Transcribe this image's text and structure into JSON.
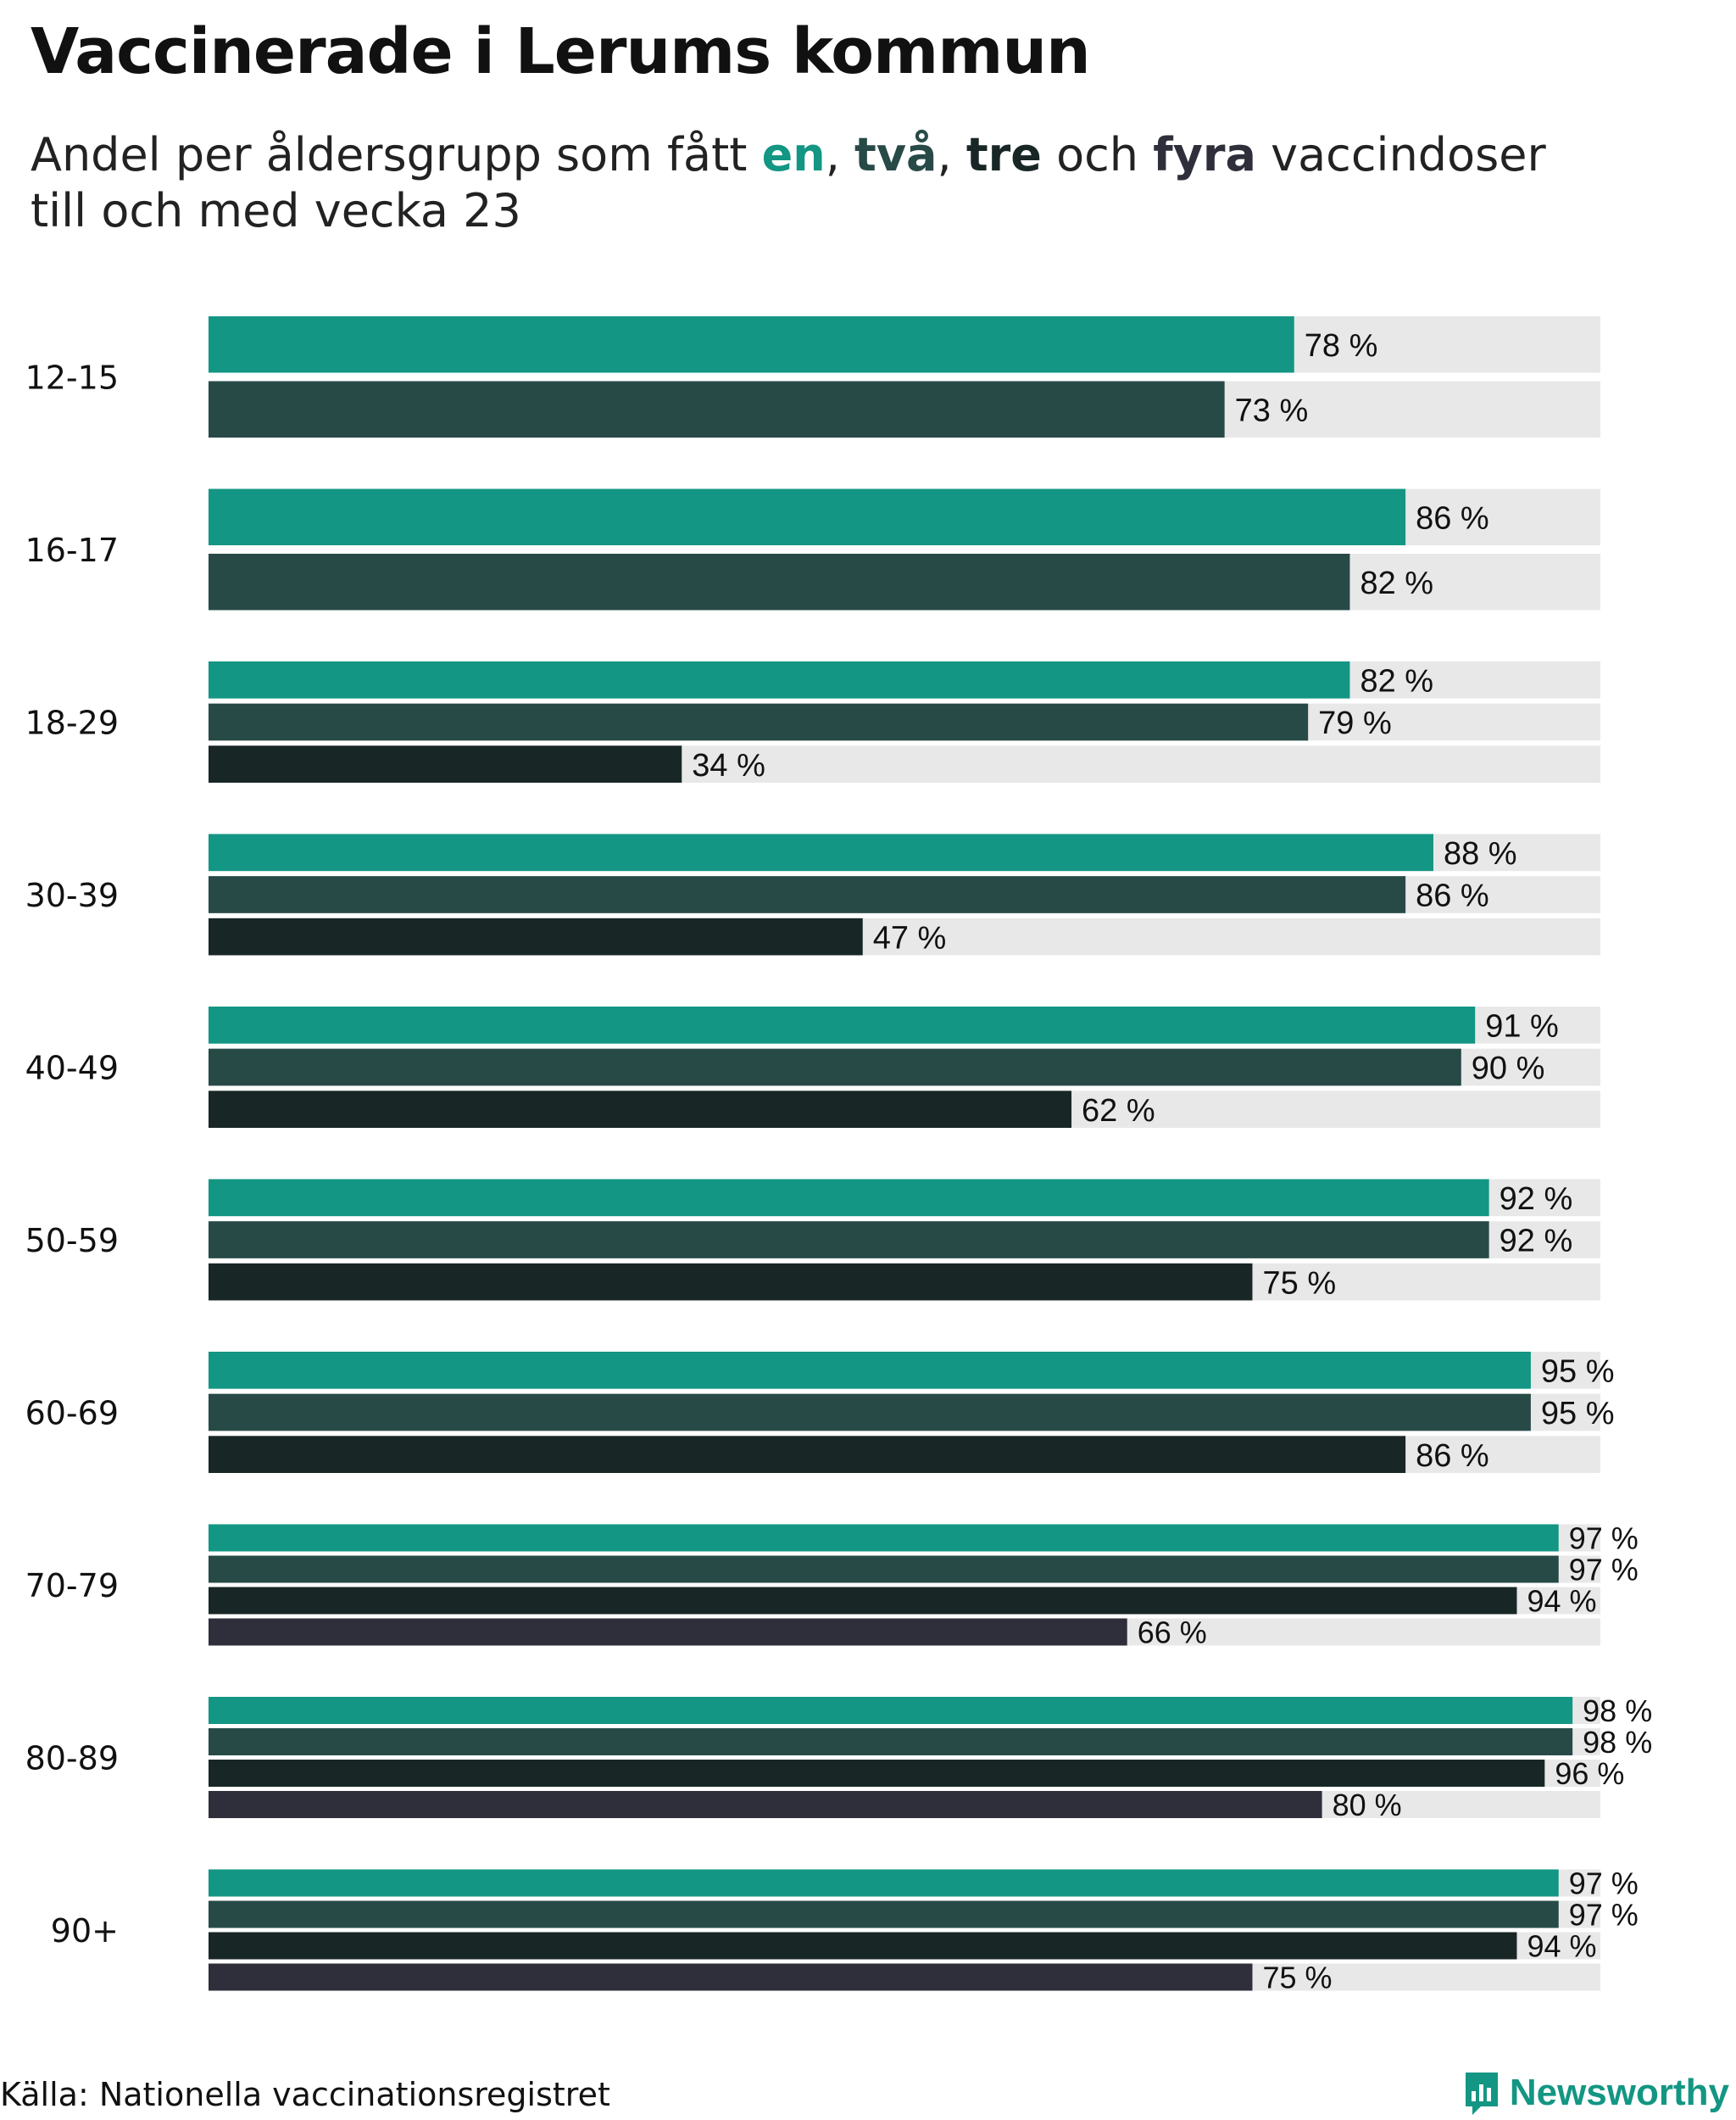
{
  "header": {
    "title": "Vaccinerade i Lerums kommun",
    "subtitle_parts": [
      {
        "text": "Andel per åldersgrupp som fått ",
        "bold": false,
        "color": "#222222"
      },
      {
        "text": "en",
        "bold": true,
        "color": "#139683"
      },
      {
        "text": ", ",
        "bold": false,
        "color": "#222222"
      },
      {
        "text": "två",
        "bold": true,
        "color": "#274a47"
      },
      {
        "text": ", ",
        "bold": false,
        "color": "#222222"
      },
      {
        "text": "tre",
        "bold": true,
        "color": "#182726"
      },
      {
        "text": " och ",
        "bold": false,
        "color": "#222222"
      },
      {
        "text": "fyra",
        "bold": true,
        "color": "#2f2f3b"
      },
      {
        "text": " vaccindoser",
        "bold": false,
        "color": "#222222"
      },
      {
        "text": "\n",
        "bold": false,
        "color": "#222222"
      },
      {
        "text": "till och med vecka 23",
        "bold": false,
        "color": "#222222"
      }
    ]
  },
  "footer": {
    "source": "Källa: Nationella vaccinationsregistret",
    "brand": "Newsworthy"
  },
  "colors": {
    "dose_1": "#139683",
    "dose_2": "#274a47",
    "dose_3": "#182726",
    "dose_4": "#2f2f3b",
    "track": "#e8e8e8"
  },
  "chart_data": {
    "type": "bar",
    "orientation": "horizontal",
    "xlim": [
      0,
      100
    ],
    "value_suffix": " %",
    "categories": [
      "12-15",
      "16-17",
      "18-29",
      "30-39",
      "40-49",
      "50-59",
      "60-69",
      "70-79",
      "80-89",
      "90+"
    ],
    "series": [
      {
        "name": "en",
        "color": "#139683",
        "values": [
          78,
          86,
          82,
          88,
          91,
          92,
          95,
          97,
          98,
          97
        ]
      },
      {
        "name": "två",
        "color": "#274a47",
        "values": [
          73,
          82,
          79,
          86,
          90,
          92,
          95,
          97,
          98,
          97
        ]
      },
      {
        "name": "tre",
        "color": "#182726",
        "values": [
          null,
          null,
          34,
          47,
          62,
          75,
          86,
          94,
          96,
          94
        ]
      },
      {
        "name": "fyra",
        "color": "#2f2f3b",
        "values": [
          null,
          null,
          null,
          null,
          null,
          null,
          null,
          66,
          80,
          75
        ]
      }
    ],
    "value_labels": [
      [
        "78 %",
        "73 %"
      ],
      [
        "86 %",
        "82 %"
      ],
      [
        "82 %",
        "79 %",
        "34 %"
      ],
      [
        "88 %",
        "86 %",
        "47 %"
      ],
      [
        "91 %",
        "90 %",
        "62 %"
      ],
      [
        "92 %",
        "92 %",
        "75 %"
      ],
      [
        "95 %",
        "95 %",
        "86 %"
      ],
      [
        "97 %",
        "97 %",
        "94 %",
        "66 %"
      ],
      [
        "98 %",
        "98 %",
        "96 %",
        "80 %"
      ],
      [
        "97 %",
        "97 %",
        "94 %",
        "75 %"
      ]
    ]
  }
}
